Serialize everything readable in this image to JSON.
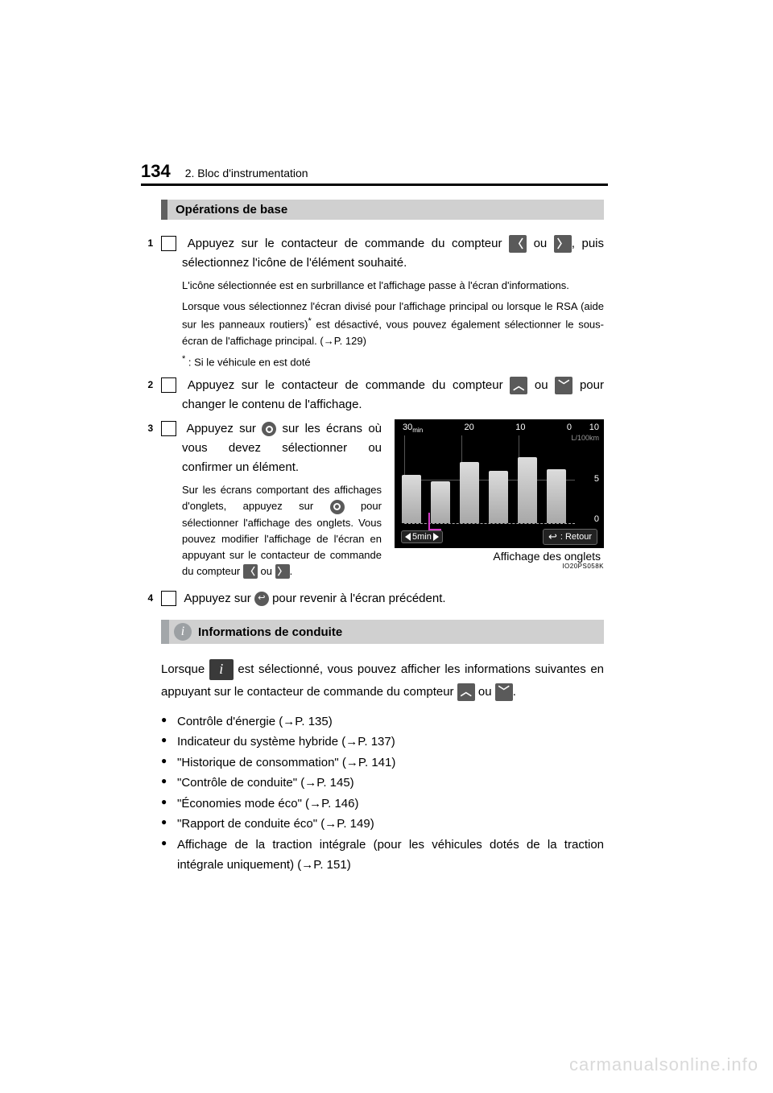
{
  "page": {
    "number": "134",
    "section": "2. Bloc d'instrumentation"
  },
  "colors": {
    "header_rule": "#000000",
    "subheading_bg": "#d0d0d0",
    "subheading_border": "#606060",
    "icon_bg": "#5a5a5a",
    "info_border": "#a3a7aa",
    "info_icon_bg": "#9ca0a3",
    "chart_bg": "#000000",
    "chart_grid": "#555555",
    "chart_bar_top": "#dcdcdc",
    "chart_bar_bottom": "#a8a8a8",
    "accent_magenta": "#d63cc7",
    "watermark": "#d9d9d9"
  },
  "subheading": "Opérations de base",
  "steps": {
    "s1": {
      "num": "1",
      "text_a": "Appuyez sur le contacteur de commande du compteur ",
      "text_b": " ou ",
      "text_c": ", puis sélectionnez l'icône de l'élément souhaité.",
      "note1": "L'icône sélectionnée est en surbrillance et l'affichage passe à l'écran d'informations.",
      "note2_a": "Lorsque vous sélectionnez l'écran divisé pour l'affichage principal ou lorsque le RSA (aide sur les panneaux routiers)",
      "note2_b": " est désactivé, vous pouvez également sélectionner le sous-écran de l'affichage principal. (",
      "note2_c": "P. 129)",
      "footnote": ": Si le véhicule en est doté"
    },
    "s2": {
      "num": "2",
      "text_a": "Appuyez sur le contacteur de commande du compteur ",
      "text_b": " ou ",
      "text_c": " pour changer le contenu de l'affichage."
    },
    "s3": {
      "num": "3",
      "text_a": "Appuyez sur ",
      "text_b": " sur les écrans où vous devez sélectionner ou confirmer un élément.",
      "note_a": "Sur les écrans comportant des affichages d'onglets, appuyez sur ",
      "note_b": " pour sélectionner l'affichage des onglets. Vous pouvez modifier l'affichage de l'écran en appuyant sur le contacteur de commande du compteur ",
      "note_c": " ou ",
      "note_d": "."
    },
    "s4": {
      "num": "4",
      "text_a": "Appuyez sur ",
      "text_b": " pour revenir à l'écran précédent."
    }
  },
  "chart": {
    "type": "bar",
    "background_color": "#000000",
    "grid_color": "#555555",
    "bar_colors": [
      "#dcdcdc",
      "#a8a8a8"
    ],
    "x_top_labels": [
      "30",
      "20",
      "10",
      "0"
    ],
    "x_top_unit_suffix": "min",
    "y_labels": [
      {
        "value": "10",
        "pos_pct": 0
      },
      {
        "value": "5",
        "pos_pct": 50
      },
      {
        "value": "0",
        "pos_pct": 100
      }
    ],
    "y_unit": "L/100km",
    "ylim": [
      0,
      10
    ],
    "bars": [
      {
        "x_pct": 4,
        "height_pct": 55
      },
      {
        "x_pct": 21,
        "height_pct": 48
      },
      {
        "x_pct": 38,
        "height_pct": 70
      },
      {
        "x_pct": 55,
        "height_pct": 60
      },
      {
        "x_pct": 72,
        "height_pct": 75
      },
      {
        "x_pct": 89,
        "height_pct": 62
      }
    ],
    "grid_v_pct": [
      33.3,
      66.6
    ],
    "grid_h_pct": [
      50
    ],
    "pager_label": "5min",
    "return_label": ": Retour",
    "caption": "Affichage des onglets",
    "image_code": "IO20PS058K"
  },
  "info_section": {
    "heading": "Informations de conduite",
    "intro_a": "Lorsque ",
    "intro_b": " est sélectionné, vous pouvez afficher les informations suivantes en appuyant sur le contacteur de commande du compteur ",
    "intro_c": " ou ",
    "intro_d": ".",
    "bullets": [
      {
        "text": "Contrôle d'énergie (",
        "ref": "P. 135)"
      },
      {
        "text": "Indicateur du système hybride (",
        "ref": "P. 137)"
      },
      {
        "text": "\"Historique de consommation\" (",
        "ref": "P. 141)"
      },
      {
        "text": "\"Contrôle de conduite\" (",
        "ref": "P. 145)"
      },
      {
        "text": "\"Économies mode éco\" (",
        "ref": "P. 146)"
      },
      {
        "text": "\"Rapport de conduite éco\" (",
        "ref": "P. 149)"
      },
      {
        "text": "Affichage de la traction intégrale (pour les véhicules dotés de la traction intégrale uniquement) (",
        "ref": "P. 151)"
      }
    ]
  },
  "icons": {
    "left": "〈",
    "right": "〉",
    "up": "︿",
    "down": "﹀",
    "info_i": "i",
    "arrow_ref": "→",
    "return": "↩"
  },
  "watermark": "carmanualsonline.info"
}
